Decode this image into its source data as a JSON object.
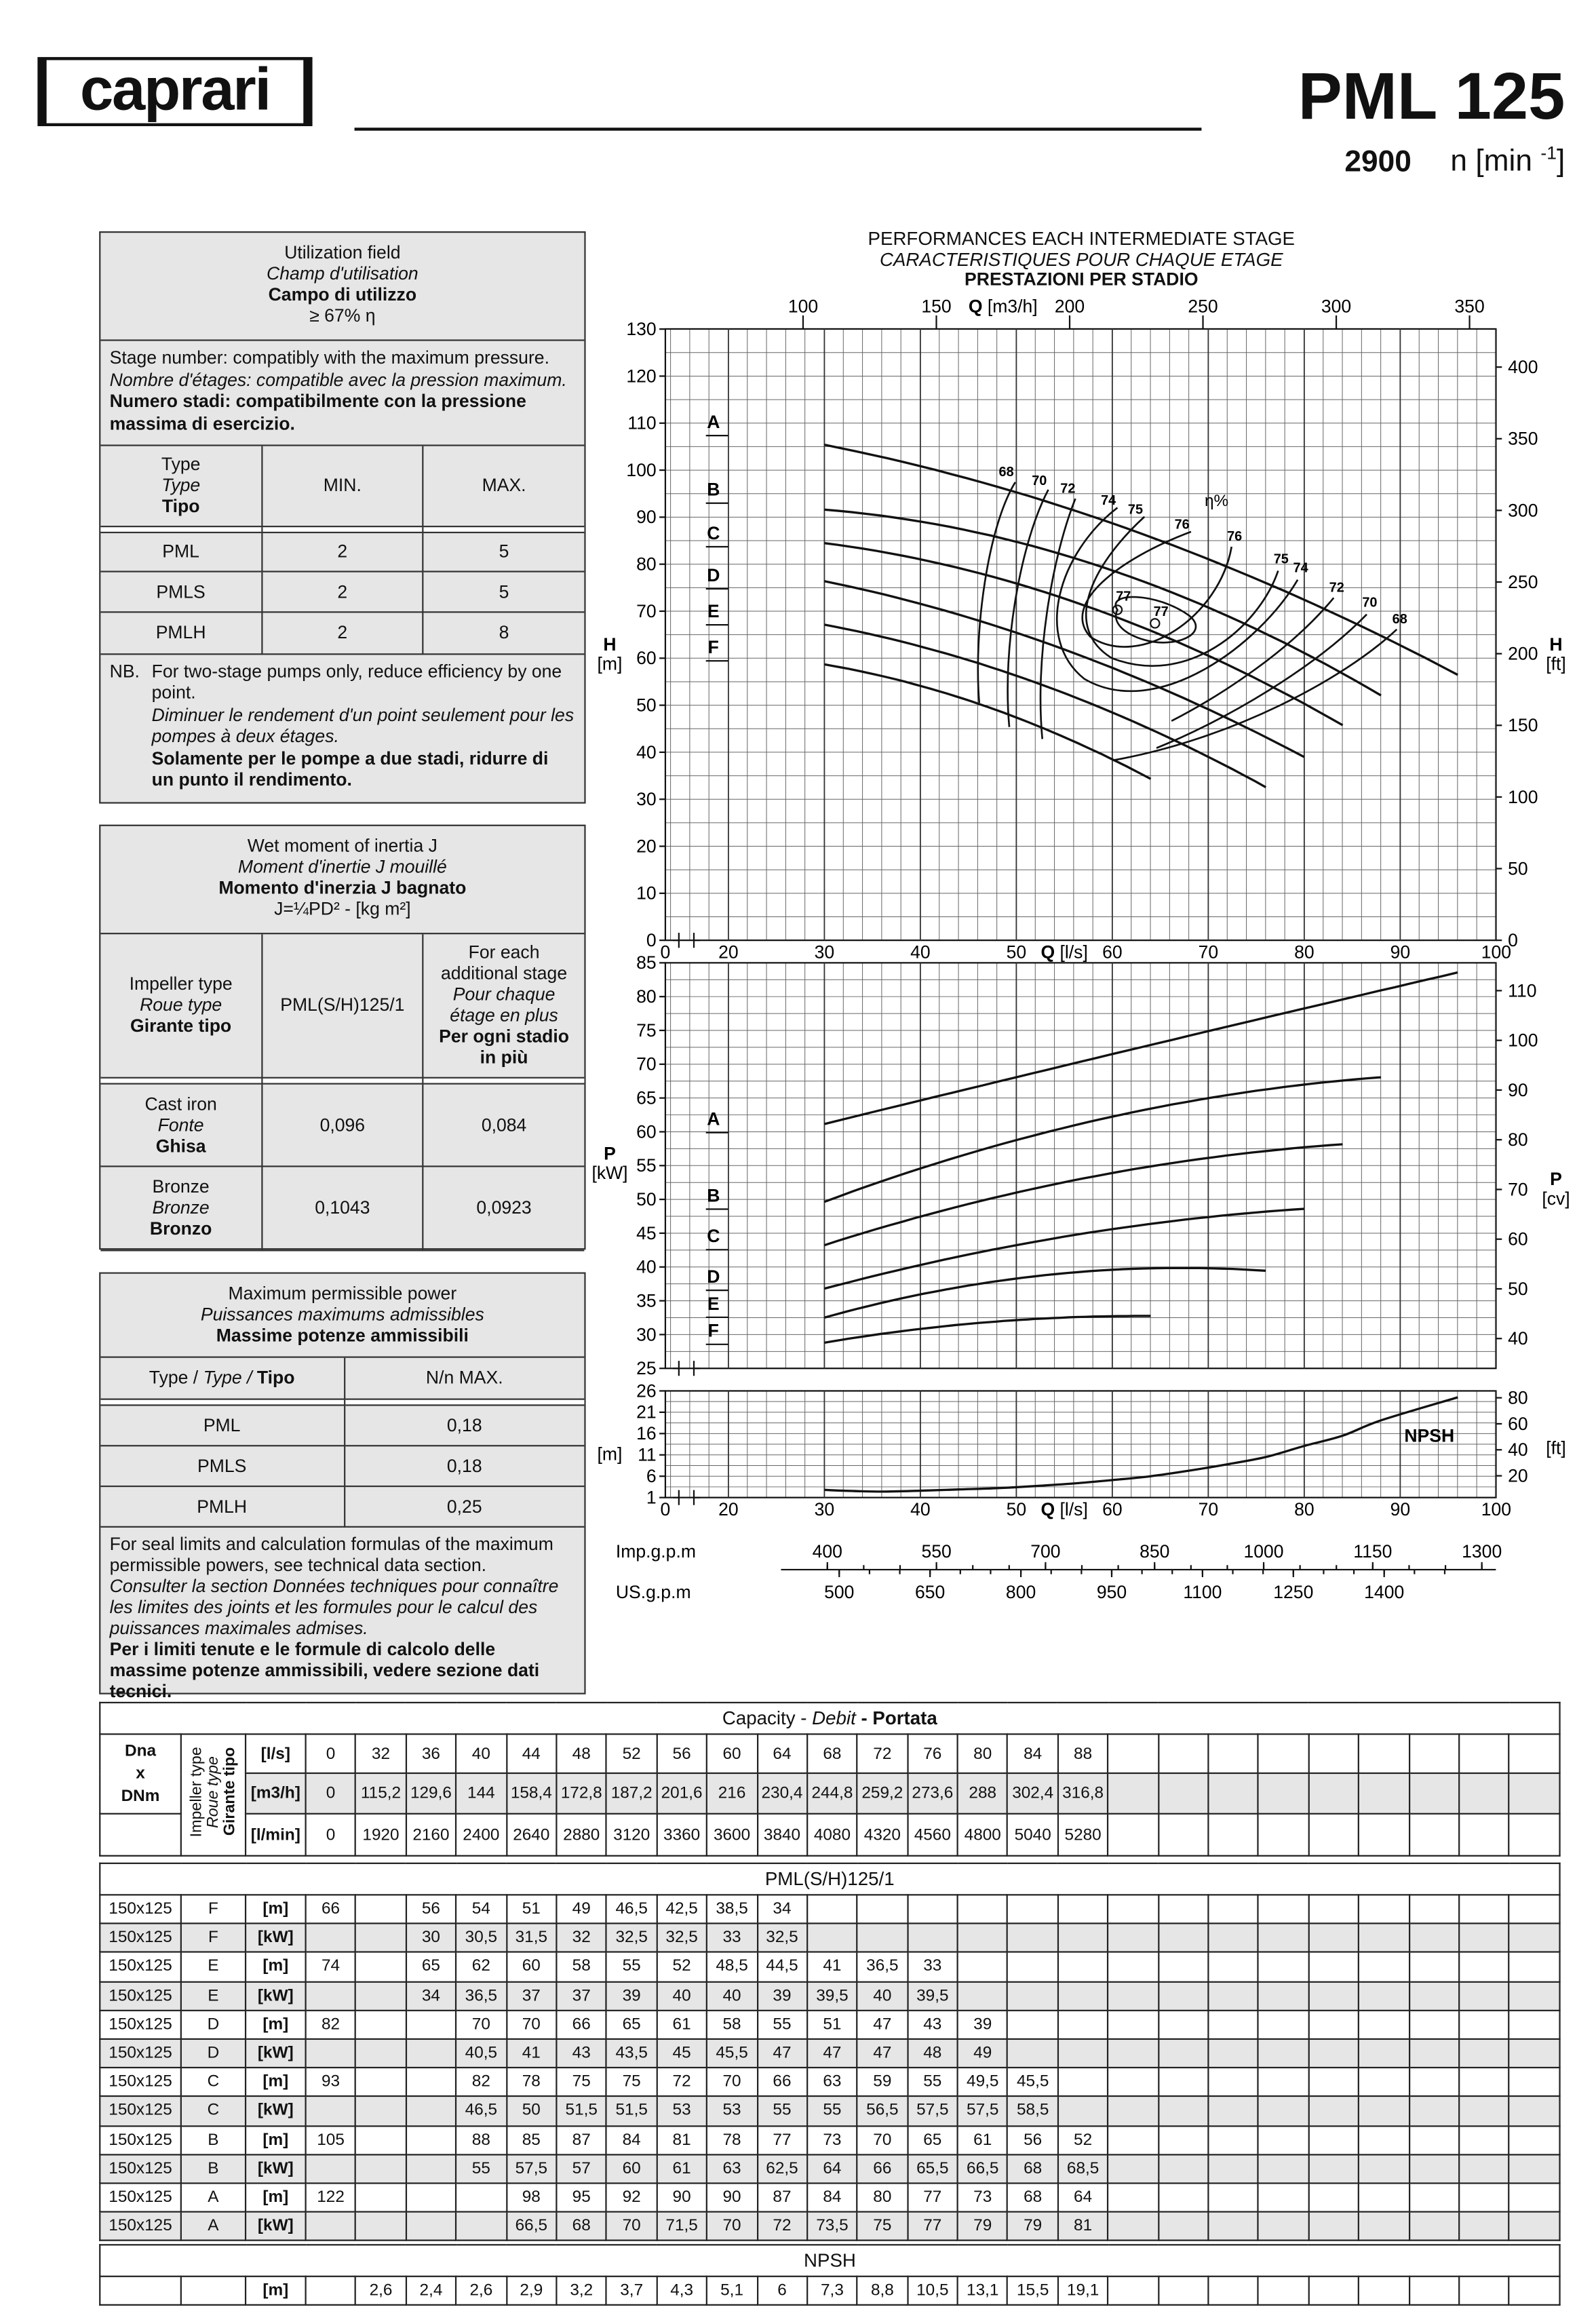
{
  "header": {
    "brand": "caprari",
    "model": "PML 125",
    "speed": "2900",
    "speed_unit": "n [min ",
    "speed_exp": "-1",
    "speed_close": "]"
  },
  "utilization": {
    "title_en": "Utilization field",
    "title_fr": "Champ d'utilisation",
    "title_it": "Campo di utilizzo",
    "threshold": "≥ 67% η",
    "stage_en": "Stage number: compatibly with the maximum pressure.",
    "stage_fr": "Nombre d'étages: compatible avec la pression maximum.",
    "stage_it": "Numero stadi: compatibilmente con la pressione massima di esercizio.",
    "col_type_en": "Type",
    "col_type_fr": "Type",
    "col_type_it": "Tipo",
    "col_min": "MIN.",
    "col_max": "MAX.",
    "rows": [
      {
        "type": "PML",
        "min": "2",
        "max": "5"
      },
      {
        "type": "PMLS",
        "min": "2",
        "max": "5"
      },
      {
        "type": "PMLH",
        "min": "2",
        "max": "8"
      }
    ],
    "nb_key": "NB.",
    "nb_en": "For two-stage pumps only, reduce efficiency by one point.",
    "nb_fr": "Diminuer le rendement d'un point seulement pour les pompes à deux étages.",
    "nb_it": "Solamente per le pompe a due stadi, ridurre di un punto il rendimento."
  },
  "inertia": {
    "title_en": "Wet moment of inertia J",
    "title_fr": "Moment d'inertie J mouillé",
    "title_it": "Momento d'inerzia J bagnato",
    "formula": "J=¼PD² - [kg m²]",
    "col_imp_en": "Impeller type",
    "col_imp_fr": "Roue type",
    "col_imp_it": "Girante tipo",
    "col_model": "PML(S/H)125/1",
    "col_add_en": "For each additional stage",
    "col_add_fr": "Pour chaque étage en plus",
    "col_add_it": "Per ogni stadio in più",
    "rows": [
      {
        "en": "Cast iron",
        "fr": "Fonte",
        "it": "Ghisa",
        "v1": "0,096",
        "v2": "0,084"
      },
      {
        "en": "Bronze",
        "fr": "Bronze",
        "it": "Bronzo",
        "v1": "0,1043",
        "v2": "0,0923"
      }
    ]
  },
  "maxpower": {
    "title_en": "Maximum permissible power",
    "title_fr": "Puissances maximums admissibles",
    "title_it": "Massime potenze ammissibili",
    "col_type_en": "Type /",
    "col_type_fr": "Type /",
    "col_type_it": "Tipo",
    "col_max": "N/n MAX.",
    "rows": [
      {
        "type": "PML",
        "v": "0,18"
      },
      {
        "type": "PMLS",
        "v": "0,18"
      },
      {
        "type": "PMLH",
        "v": "0,25"
      }
    ],
    "note_en": "For seal limits and calculation formulas of the maximum permissible powers, see technical data section.",
    "note_fr": "Consulter la section Données techniques pour connaître les limites des joints et les formules pour le calcul des puissances maximales admises.",
    "note_it": "Per i limiti tenute e le formule di calcolo delle massime potenze ammissibili, vedere sezione dati tecnici."
  },
  "chart_titles": {
    "en": "PERFORMANCES EACH INTERMEDIATE STAGE",
    "fr": "CARACTERISTIQUES POUR CHAQUE ETAGE",
    "it": "PRESTAZIONI PER STADIO"
  },
  "chart_data": [
    {
      "type": "line",
      "name": "head",
      "xlabel": "Q [l/s]",
      "x2label": "Q [m3/h]",
      "ylabel": "H [m]",
      "y2label": "H [ft]",
      "xlim": [
        0,
        100
      ],
      "ylim": [
        0,
        130
      ],
      "xticks": [
        0,
        20,
        30,
        40,
        50,
        60,
        70,
        80,
        90,
        100
      ],
      "x2ticks": [
        100,
        150,
        200,
        250,
        300,
        350
      ],
      "yticks": [
        0,
        10,
        20,
        30,
        40,
        50,
        60,
        70,
        80,
        90,
        100,
        110,
        120,
        130
      ],
      "y2ticks": [
        0,
        50,
        100,
        150,
        200,
        250,
        300,
        350,
        400
      ],
      "grid": true,
      "series": [
        {
          "name": "A",
          "x": [
            30,
            44,
            48,
            52,
            56,
            60,
            64,
            68,
            72,
            76,
            80,
            84,
            88,
            96
          ],
          "y": [
            107,
            98,
            95,
            92,
            90,
            90,
            87,
            84,
            80,
            77,
            73,
            68,
            64,
            56
          ]
        },
        {
          "name": "B",
          "x": [
            30,
            40,
            44,
            48,
            52,
            56,
            60,
            64,
            68,
            72,
            76,
            80,
            84,
            88
          ],
          "y": [
            93,
            88,
            85,
            87,
            84,
            81,
            78,
            77,
            73,
            70,
            65,
            61,
            56,
            52
          ]
        },
        {
          "name": "C",
          "x": [
            30,
            40,
            44,
            48,
            52,
            56,
            60,
            64,
            68,
            72,
            76,
            80,
            84
          ],
          "y": [
            85,
            82,
            78,
            75,
            75,
            72,
            70,
            66,
            63,
            59,
            55,
            49.5,
            45.5
          ]
        },
        {
          "name": "D",
          "x": [
            30,
            40,
            44,
            48,
            52,
            56,
            60,
            64,
            68,
            72,
            76,
            80
          ],
          "y": [
            77,
            70,
            70,
            66,
            65,
            61,
            58,
            55,
            51,
            47,
            43,
            39
          ]
        },
        {
          "name": "E",
          "x": [
            30,
            36,
            40,
            44,
            48,
            52,
            56,
            60,
            64,
            68,
            72,
            76
          ],
          "y": [
            67,
            65,
            62,
            60,
            58,
            55,
            52,
            48.5,
            44.5,
            41,
            36.5,
            33
          ]
        },
        {
          "name": "F",
          "x": [
            30,
            36,
            40,
            44,
            48,
            52,
            56,
            60,
            64
          ],
          "y": [
            59,
            56,
            54,
            51,
            49,
            46.5,
            42.5,
            38.5,
            34
          ]
        }
      ],
      "efficiency_label": "η%",
      "efficiency_levels_left": [
        "68",
        "70",
        "72",
        "74",
        "75",
        "76"
      ],
      "efficiency_levels_right": [
        "76",
        "75",
        "74",
        "72",
        "70",
        "68"
      ],
      "efficiency_peak": [
        "77",
        "77"
      ]
    },
    {
      "type": "line",
      "name": "power",
      "xlabel": "Q [l/s]",
      "ylabel": "P [kW]",
      "y2label": "P [cv]",
      "ylim": [
        25,
        85
      ],
      "yticks": [
        25,
        30,
        35,
        40,
        45,
        50,
        55,
        60,
        65,
        70,
        75,
        80,
        85
      ],
      "y2ticks": [
        40,
        50,
        60,
        70,
        80,
        90,
        100,
        110
      ],
      "grid": true,
      "series": [
        {
          "name": "A",
          "x": [
            30,
            44,
            48,
            52,
            56,
            60,
            64,
            68,
            72,
            76,
            80,
            84,
            88,
            96
          ],
          "y": [
            60.3,
            66.5,
            68,
            70,
            71.5,
            70,
            72,
            73.5,
            75,
            77,
            79,
            79,
            81,
            84
          ]
        },
        {
          "name": "B",
          "x": [
            30,
            40,
            44,
            48,
            52,
            56,
            60,
            64,
            68,
            72,
            76,
            80,
            84,
            88
          ],
          "y": [
            49,
            55,
            57.5,
            57,
            60,
            61,
            63,
            62.5,
            64,
            66,
            65.5,
            66.5,
            68,
            68.5
          ]
        },
        {
          "name": "C",
          "x": [
            30,
            40,
            44,
            48,
            52,
            56,
            60,
            64,
            68,
            72,
            76,
            80,
            84
          ],
          "y": [
            43,
            46.5,
            50,
            51.5,
            51.5,
            53,
            53,
            55,
            55,
            56.5,
            57.5,
            57.5,
            58.5
          ]
        },
        {
          "name": "D",
          "x": [
            30,
            40,
            44,
            48,
            52,
            56,
            60,
            64,
            68,
            72,
            76,
            80
          ],
          "y": [
            36.8,
            40.5,
            41,
            43,
            43.5,
            45,
            45.5,
            47,
            47,
            47,
            48,
            49
          ]
        },
        {
          "name": "E",
          "x": [
            30,
            36,
            40,
            44,
            48,
            52,
            56,
            60,
            64,
            68,
            72,
            76
          ],
          "y": [
            32.8,
            34,
            36.5,
            37,
            37,
            39,
            40,
            40,
            39,
            39.5,
            40,
            39.5
          ]
        },
        {
          "name": "F",
          "x": [
            30,
            36,
            40,
            44,
            48,
            52,
            56,
            60,
            64
          ],
          "y": [
            29,
            30,
            30.5,
            31.5,
            32,
            32.5,
            32.5,
            33,
            32.5
          ]
        }
      ]
    },
    {
      "type": "line",
      "name": "npsh",
      "xlabel": "Q [l/s]",
      "ylabel": "[m]",
      "y2label": "[ft]",
      "ylim": [
        1,
        26
      ],
      "yticks": [
        1,
        6,
        11,
        16,
        21,
        26
      ],
      "y2ticks": [
        20,
        40,
        60,
        80
      ],
      "grid": true,
      "series": [
        {
          "name": "NPSH",
          "x": [
            30,
            32,
            36,
            40,
            44,
            48,
            52,
            56,
            60,
            64,
            68,
            72,
            76,
            80,
            84,
            88,
            96
          ],
          "y": [
            2.8,
            2.6,
            2.4,
            2.6,
            2.9,
            3.2,
            3.7,
            4.3,
            5.1,
            6,
            7.3,
            8.8,
            10.5,
            13.1,
            15.5,
            19.1,
            24.5
          ]
        }
      ]
    },
    {
      "type": "axis",
      "name": "gpm",
      "imp_label": "Imp.g.p.m",
      "imp_ticks": [
        400,
        550,
        700,
        850,
        1000,
        1150,
        1300
      ],
      "us_label": "US.g.p.m",
      "us_ticks": [
        500,
        650,
        800,
        950,
        1100,
        1250,
        1400
      ]
    }
  ],
  "table": {
    "capacity_title_en": "Capacity - ",
    "capacity_title_fr": "Debit",
    "capacity_title_it": " - Portata",
    "dn_label": [
      "Dna",
      "x",
      "DNm"
    ],
    "impeller_label": [
      "Impeller type",
      "Roue type",
      "Girante tipo"
    ],
    "capacity_rows": [
      {
        "unit": "[l/s]",
        "values": [
          "0",
          "32",
          "36",
          "40",
          "44",
          "48",
          "52",
          "56",
          "60",
          "64",
          "68",
          "72",
          "76",
          "80",
          "84",
          "88"
        ]
      },
      {
        "unit": "[m3/h]",
        "values": [
          "0",
          "115,2",
          "129,6",
          "144",
          "158,4",
          "172,8",
          "187,2",
          "201,6",
          "216",
          "230,4",
          "244,8",
          "259,2",
          "273,6",
          "288",
          "302,4",
          "316,8"
        ]
      },
      {
        "unit": "[l/min]",
        "values": [
          "0",
          "1920",
          "2160",
          "2400",
          "2640",
          "2880",
          "3120",
          "3360",
          "3600",
          "3840",
          "4080",
          "4320",
          "4560",
          "4800",
          "5040",
          "5280"
        ]
      }
    ],
    "model_title": "PML(S/H)125/1",
    "rows": [
      {
        "dn": "150x125",
        "imp": "F",
        "unit": "[m]",
        "values": [
          "66",
          "",
          "56",
          "54",
          "51",
          "49",
          "46,5",
          "42,5",
          "38,5",
          "34"
        ]
      },
      {
        "dn": "150x125",
        "imp": "F",
        "unit": "[kW]",
        "values": [
          "",
          "",
          "30",
          "30,5",
          "31,5",
          "32",
          "32,5",
          "32,5",
          "33",
          "32,5"
        ]
      },
      {
        "dn": "150x125",
        "imp": "E",
        "unit": "[m]",
        "values": [
          "74",
          "",
          "65",
          "62",
          "60",
          "58",
          "55",
          "52",
          "48,5",
          "44,5",
          "41",
          "36,5",
          "33"
        ]
      },
      {
        "dn": "150x125",
        "imp": "E",
        "unit": "[kW]",
        "values": [
          "",
          "",
          "34",
          "36,5",
          "37",
          "37",
          "39",
          "40",
          "40",
          "39",
          "39,5",
          "40",
          "39,5"
        ]
      },
      {
        "dn": "150x125",
        "imp": "D",
        "unit": "[m]",
        "values": [
          "82",
          "",
          "",
          "70",
          "70",
          "66",
          "65",
          "61",
          "58",
          "55",
          "51",
          "47",
          "43",
          "39"
        ]
      },
      {
        "dn": "150x125",
        "imp": "D",
        "unit": "[kW]",
        "values": [
          "",
          "",
          "",
          "40,5",
          "41",
          "43",
          "43,5",
          "45",
          "45,5",
          "47",
          "47",
          "47",
          "48",
          "49"
        ]
      },
      {
        "dn": "150x125",
        "imp": "C",
        "unit": "[m]",
        "values": [
          "93",
          "",
          "",
          "82",
          "78",
          "75",
          "75",
          "72",
          "70",
          "66",
          "63",
          "59",
          "55",
          "49,5",
          "45,5"
        ]
      },
      {
        "dn": "150x125",
        "imp": "C",
        "unit": "[kW]",
        "values": [
          "",
          "",
          "",
          "46,5",
          "50",
          "51,5",
          "51,5",
          "53",
          "53",
          "55",
          "55",
          "56,5",
          "57,5",
          "57,5",
          "58,5"
        ]
      },
      {
        "dn": "150x125",
        "imp": "B",
        "unit": "[m]",
        "values": [
          "105",
          "",
          "",
          "88",
          "85",
          "87",
          "84",
          "81",
          "78",
          "77",
          "73",
          "70",
          "65",
          "61",
          "56",
          "52"
        ]
      },
      {
        "dn": "150x125",
        "imp": "B",
        "unit": "[kW]",
        "values": [
          "",
          "",
          "",
          "55",
          "57,5",
          "57",
          "60",
          "61",
          "63",
          "62,5",
          "64",
          "66",
          "65,5",
          "66,5",
          "68",
          "68,5"
        ]
      },
      {
        "dn": "150x125",
        "imp": "A",
        "unit": "[m]",
        "values": [
          "122",
          "",
          "",
          "",
          "98",
          "95",
          "92",
          "90",
          "90",
          "87",
          "84",
          "80",
          "77",
          "73",
          "68",
          "64"
        ]
      },
      {
        "dn": "150x125",
        "imp": "A",
        "unit": "[kW]",
        "values": [
          "",
          "",
          "",
          "",
          "66,5",
          "68",
          "70",
          "71,5",
          "70",
          "72",
          "73,5",
          "75",
          "77",
          "79",
          "79",
          "81"
        ]
      }
    ],
    "npsh_title": "NPSH",
    "npsh_row": {
      "unit": "[m]",
      "values": [
        "",
        "2,6",
        "2,4",
        "2,6",
        "2,9",
        "3,2",
        "3,7",
        "4,3",
        "5,1",
        "6",
        "7,3",
        "8,8",
        "10,5",
        "13,1",
        "15,5",
        "19,1"
      ]
    }
  }
}
